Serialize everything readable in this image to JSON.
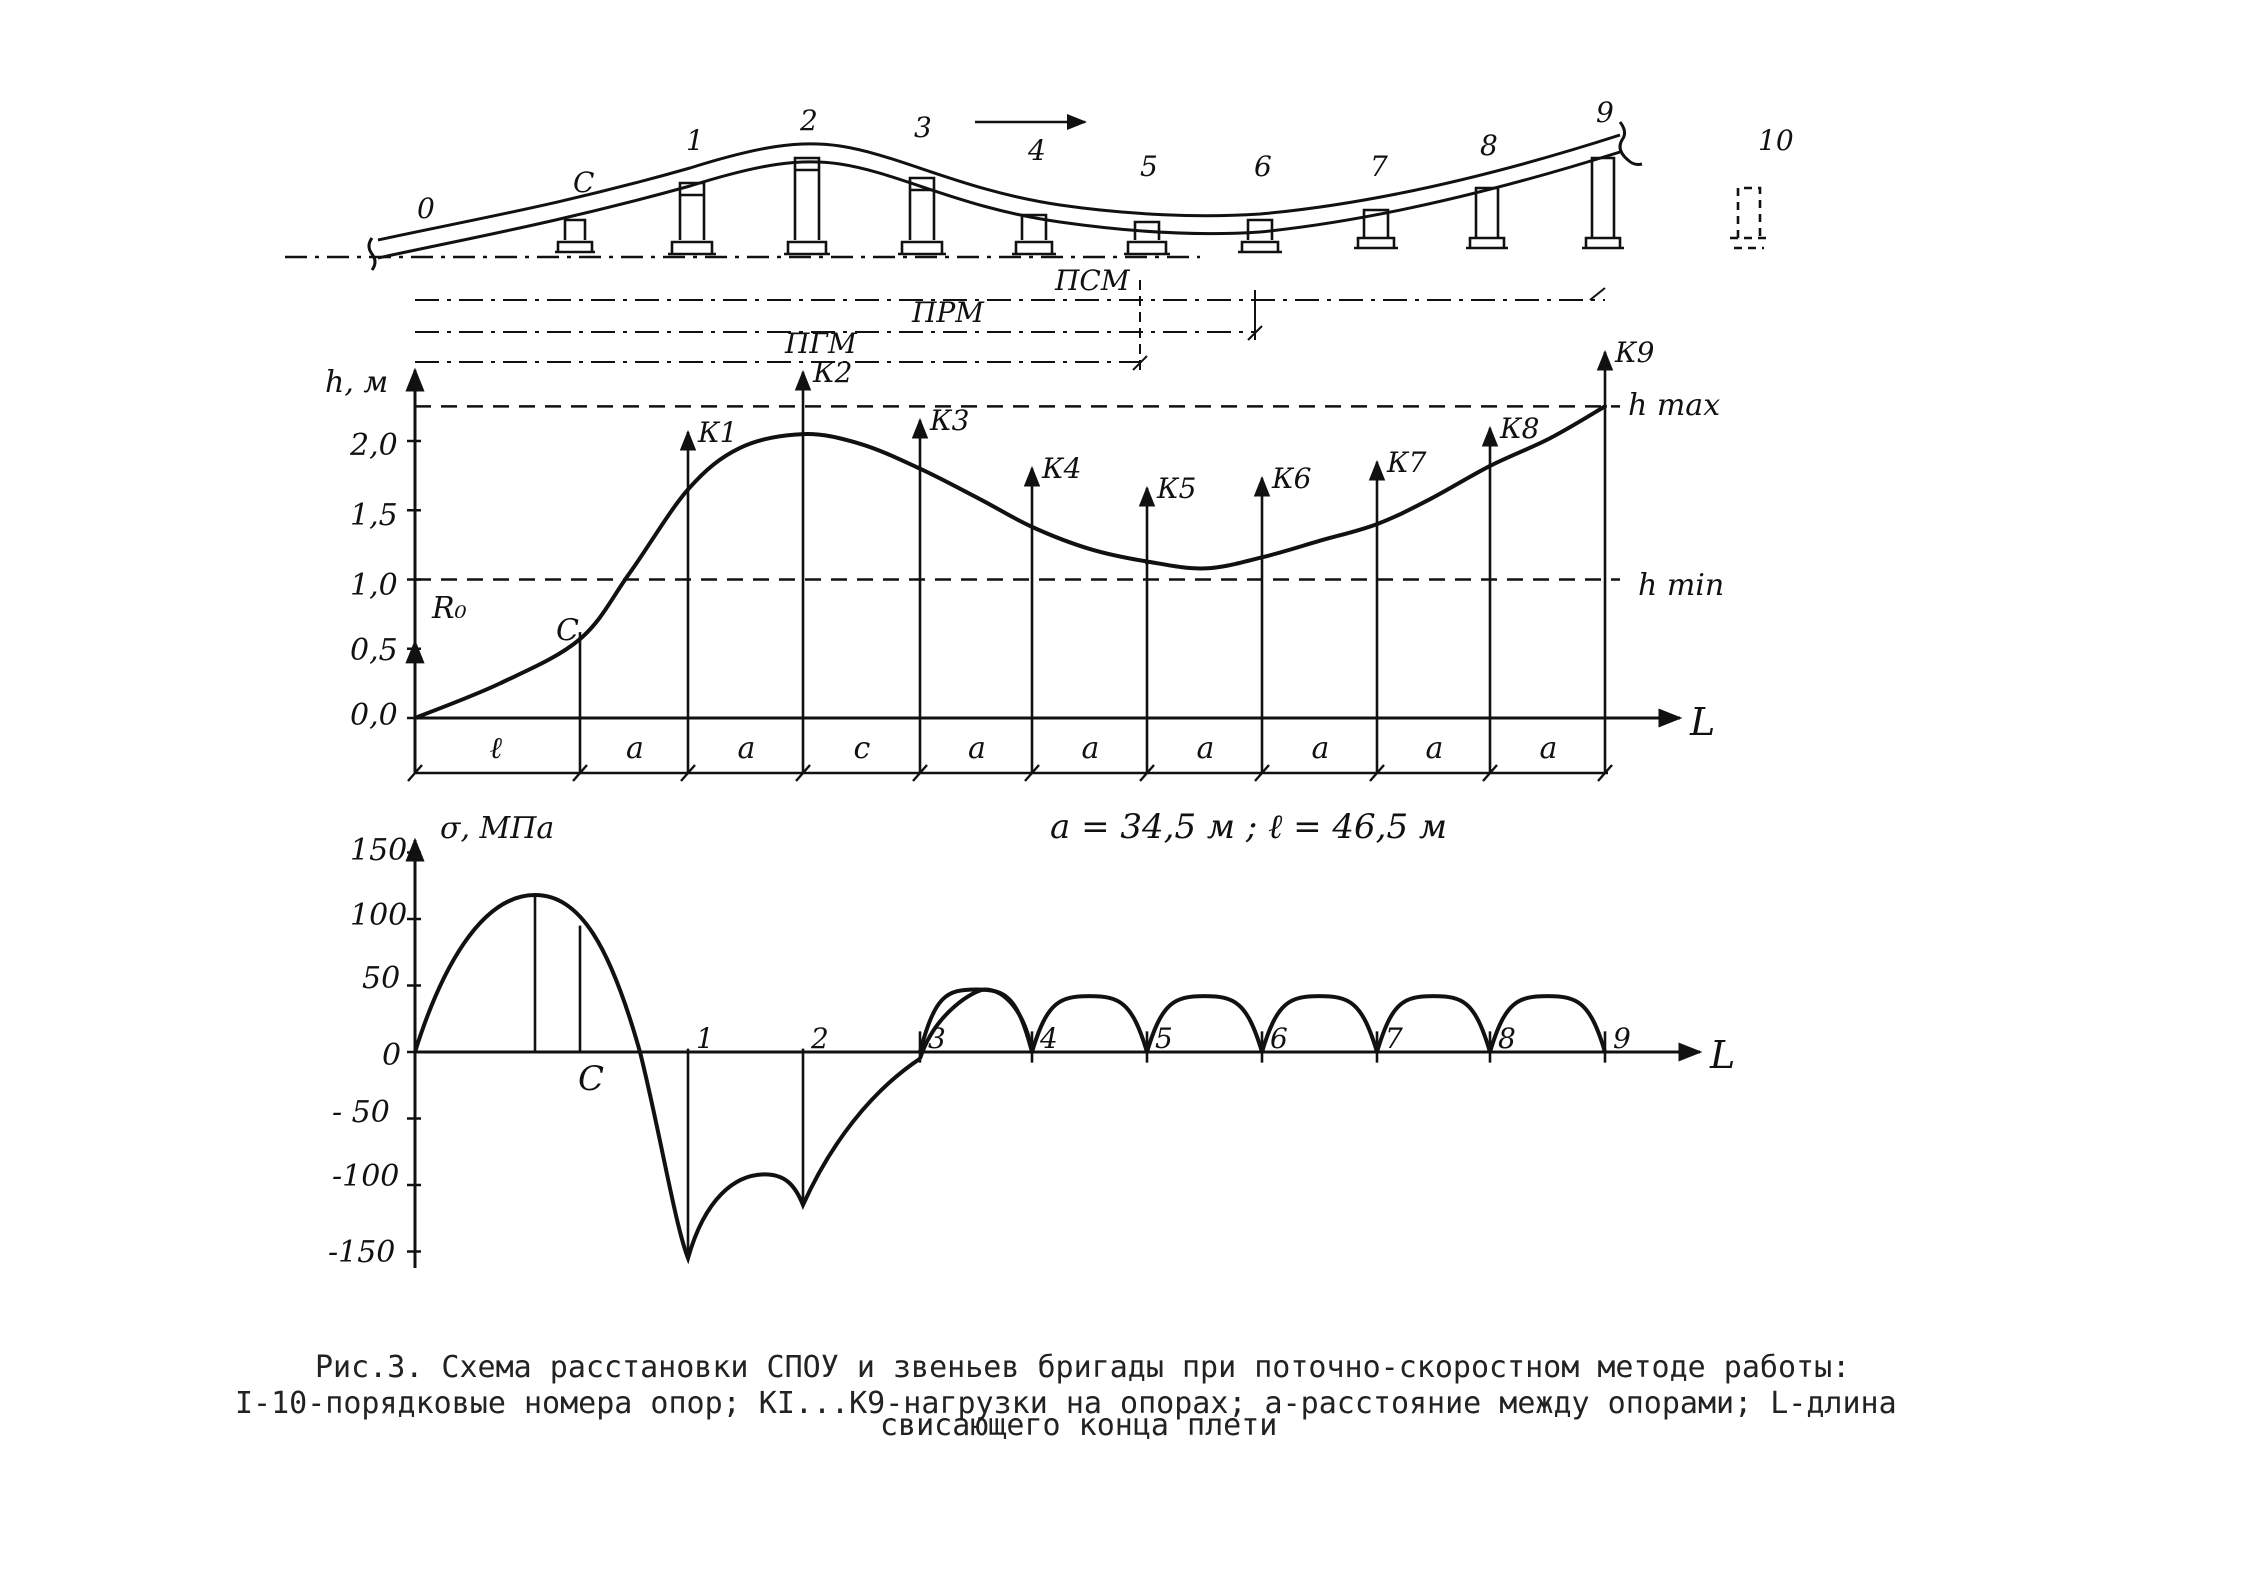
{
  "figure": {
    "top_schema": {
      "support_labels": [
        "0",
        "С",
        "1",
        "2",
        "3",
        "4",
        "5",
        "6",
        "7",
        "8",
        "9",
        "10"
      ],
      "dimension_labels": {
        "psm": "ПСМ",
        "prm": "ПРМ",
        "pgm": "ПГМ"
      },
      "direction": "arrow-right"
    },
    "height_chart": {
      "axis_label": "h, м",
      "x_axis_label": "L",
      "y_ticks": [
        "0,0",
        "0,5",
        "1,0",
        "1,5",
        "2,0"
      ],
      "ref_lines": {
        "h_max": "h max",
        "h_min": "h min"
      },
      "reaction_label": "R₀",
      "point_c_label": "С",
      "load_labels": [
        "К1",
        "К2",
        "К3",
        "К4",
        "К5",
        "К6",
        "К7",
        "К8",
        "К9"
      ],
      "span_labels": [
        "ℓ",
        "а",
        "а",
        "с",
        "а",
        "а",
        "а",
        "а",
        "а",
        "а"
      ],
      "dimension_note": "а = 34,5 м ;  ℓ = 46,5 м"
    },
    "stress_chart": {
      "axis_label": "σ, МПа",
      "x_axis_label": "L",
      "y_ticks": [
        "150",
        "100",
        "50",
        "0",
        "- 50",
        "-100",
        "-150"
      ],
      "support_labels": [
        "1",
        "2",
        "3",
        "4",
        "5",
        "6",
        "7",
        "8",
        "9"
      ],
      "point_c_label": "С"
    }
  },
  "chart_data": [
    {
      "type": "line",
      "title": "",
      "ylabel": "h, м",
      "xlabel": "L",
      "ylim": [
        0,
        2.4
      ],
      "x_categories": [
        "0",
        "С",
        "1",
        "2",
        "3",
        "4",
        "5",
        "6",
        "7",
        "8",
        "9"
      ],
      "series": [
        {
          "values": [
            0.0,
            0.57,
            1.65,
            2.05,
            1.8,
            1.38,
            1.12,
            1.16,
            1.4,
            1.82,
            2.25
          ]
        }
      ],
      "reference_lines": [
        {
          "label": "h max",
          "y": 2.25
        },
        {
          "label": "h min",
          "y": 1.0
        }
      ]
    },
    {
      "type": "line",
      "title": "",
      "ylabel": "σ, МПа",
      "xlabel": "L",
      "ylim": [
        -150,
        150
      ],
      "x_categories": [
        "0",
        "С",
        "1",
        "2",
        "3",
        "4",
        "5",
        "6",
        "7",
        "8",
        "9"
      ],
      "series": [
        {
          "values": [
            0,
            95,
            -155,
            -115,
            -5,
            0,
            0,
            0,
            0,
            0,
            0
          ]
        }
      ],
      "peaks": [
        118,
        47,
        42,
        42,
        42,
        42,
        42
      ],
      "troughs": [
        -155,
        -92,
        -115
      ]
    }
  ],
  "caption": {
    "line1": "Рис.3. Схема расстановки СПОУ и звеньев бригады при поточно-скоростном методе работы:",
    "line2": "I-10-порядковые номера опор; КI...К9-нагрузки на опорах; а-расстояние между опорами;  L-длина",
    "line3": "свисающего конца плети"
  }
}
